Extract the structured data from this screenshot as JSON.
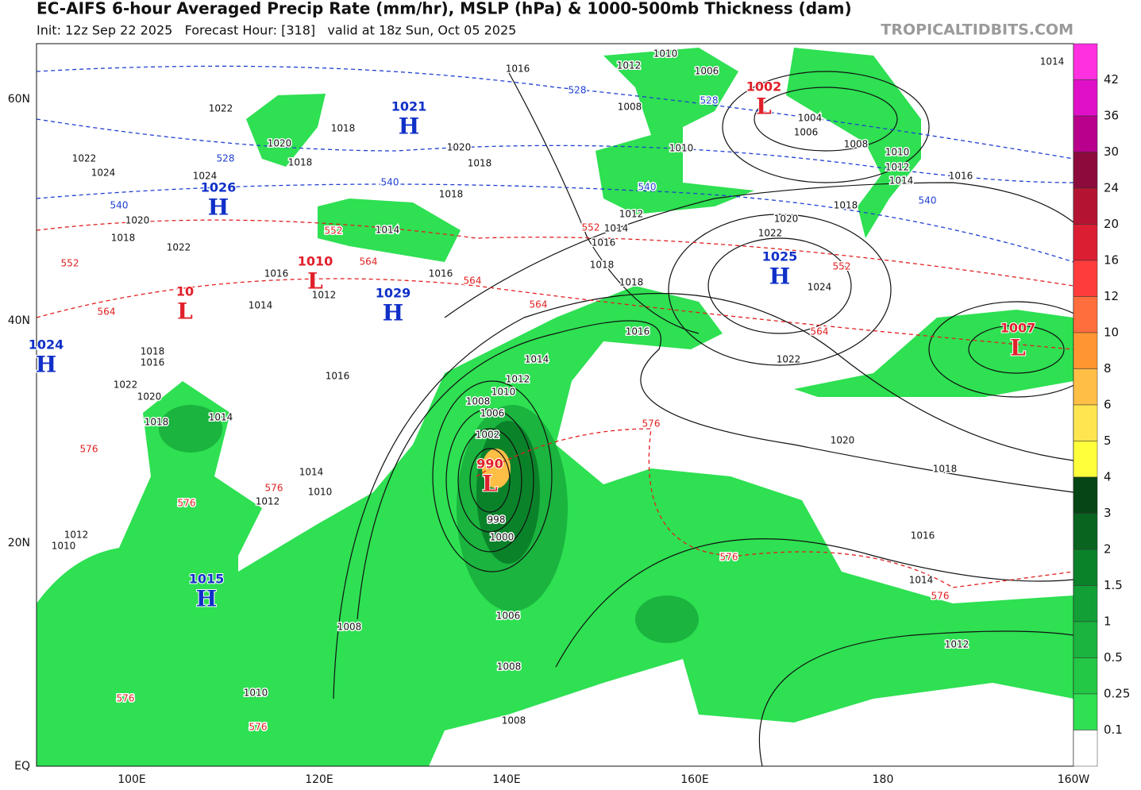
{
  "header": {
    "title": "EC-AIFS 6-hour Averaged Precip Rate (mm/hr), MSLP (hPa) & 1000-500mb Thickness (dam)",
    "subtitle": "Init: 12z Sep 22 2025   Forecast Hour: [318]   valid at 18z Sun, Oct 05 2025",
    "watermark": "TROPICALTIDBITS.COM"
  },
  "map": {
    "lon_labels": [
      "100E",
      "120E",
      "140E",
      "160E",
      "180",
      "160W"
    ],
    "lat_labels": [
      "60N",
      "40N",
      "20N",
      "EQ"
    ],
    "centers": [
      {
        "symbol": "H",
        "value": 1021
      },
      {
        "symbol": "H",
        "value": 1026
      },
      {
        "symbol": "L",
        "value": 1010
      },
      {
        "symbol": "L",
        "value": 10
      },
      {
        "symbol": "H",
        "value": 1029
      },
      {
        "symbol": "H",
        "value": 1024
      },
      {
        "symbol": "H",
        "value": 1015
      },
      {
        "symbol": "L",
        "value": 1002
      },
      {
        "symbol": "H",
        "value": 1025
      },
      {
        "symbol": "L",
        "value": 1007
      },
      {
        "symbol": "L",
        "value": 990
      }
    ],
    "high_color": "#1030c8",
    "low_color": "#e0202a",
    "isobar_labels": [
      1016,
      1012,
      1010,
      1006,
      1008,
      1022,
      1018,
      1020,
      1018,
      1022,
      1024,
      1020,
      1018,
      1018,
      1024,
      1020,
      1018,
      1022,
      1014,
      1016,
      1012,
      1014,
      1016,
      1016,
      1014,
      1012,
      1018,
      1018,
      1016,
      1014,
      1012,
      1010,
      1008,
      1006,
      1002,
      998,
      1000,
      1006,
      1008,
      1008,
      1020,
      1018,
      1016,
      1014,
      1012,
      1022,
      1024,
      1020,
      1022,
      1018,
      1016,
      1014,
      1012,
      1010,
      1008,
      1006,
      1004,
      1010,
      1014,
      1016,
      1016,
      1018,
      1014,
      1022,
      1020,
      1018,
      1010,
      1014,
      1012,
      1010,
      1012,
      1008,
      1010
    ],
    "thickness_labels": [
      552,
      564,
      564,
      564,
      552,
      552,
      564,
      576,
      576,
      576,
      576,
      576,
      576,
      576,
      576,
      552,
      564,
      528,
      528,
      540,
      540,
      528,
      540,
      540
    ]
  },
  "colorbar": {
    "levels": [
      42,
      36,
      30,
      24,
      20,
      16,
      12,
      10,
      8,
      6,
      5,
      4,
      3,
      2,
      1.5,
      1,
      0.5,
      0.25,
      0.1
    ],
    "colors": [
      "#ff30e0",
      "#e010c8",
      "#b8008c",
      "#8c0a3c",
      "#b41432",
      "#dc1e32",
      "#ff3c3c",
      "#ff6e3c",
      "#ff9632",
      "#ffbe46",
      "#ffe650",
      "#ffff3c",
      "#064614",
      "#08641e",
      "#0a822a",
      "#12a036",
      "#1ab43e",
      "#22c846",
      "#2ee052",
      "#ffffff"
    ]
  }
}
